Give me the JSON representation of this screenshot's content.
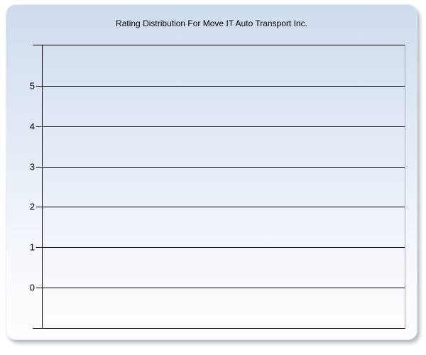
{
  "chart": {
    "title": "Rating Distribution For Move IT Auto Transport Inc."
  },
  "chart_data": {
    "type": "bar",
    "title": "Rating Distribution For Move IT Auto Transport Inc.",
    "categories": [],
    "series": [],
    "values": [],
    "xlabel": "",
    "ylabel": "",
    "ylim": [
      -1,
      6
    ],
    "yticks": [
      0,
      1,
      2,
      3,
      4,
      5
    ],
    "ytick_labels": [
      "0",
      "1",
      "2",
      "3",
      "4",
      "5"
    ],
    "grid": true,
    "legend": false
  },
  "colors": {
    "page_background": "#ffffff",
    "panel_top": "#cfdcee",
    "panel_bottom": "#fbfcfe",
    "plot_top": "#d2dfef",
    "plot_bottom": "#fefefe",
    "gridline": "#000000",
    "axis": "#000000",
    "plot_right_border": "#a6adb8",
    "title_text": "#000000"
  }
}
